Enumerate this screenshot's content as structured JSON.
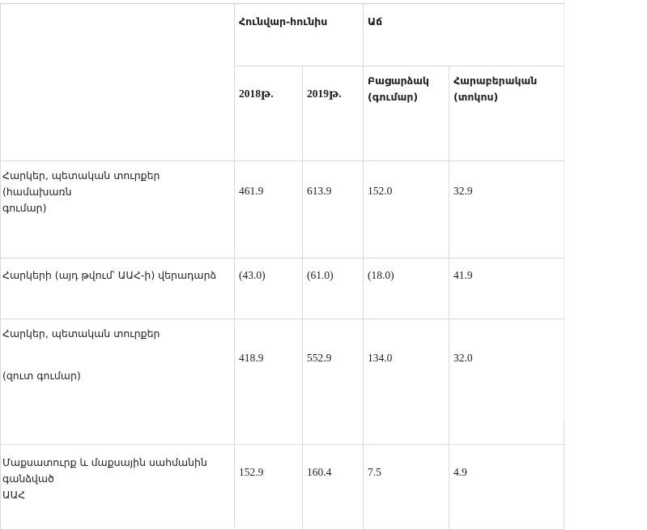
{
  "table": {
    "header_period": "Հունվար-հունիս",
    "header_change": "Աճ",
    "year_2018": "2018թ.",
    "year_2019": "2019թ.",
    "abs_line1": "Բացարձակ",
    "abs_line2": "(գումար)",
    "rel_line1": "Հարաբերական",
    "rel_line2": "(տոկոս)",
    "rows": [
      {
        "label_line1": "Հարկեր, պետական տուրքեր (համախառն",
        "label_line2": "գումար)",
        "v2018": "461.9",
        "v2019": "613.9",
        "abs": "152.0",
        "rel": "32.9"
      },
      {
        "label_line1": "Հարկերի (այդ թվում՝ ԱԱՀ-ի) վերադարձ",
        "v2018": "(43.0)",
        "v2019": "(61.0)",
        "abs": "(18.0)",
        "rel": "41.9"
      },
      {
        "label_line1": "Հարկեր, պետական տուրքեր",
        "label_line2": "(զուտ գումար)",
        "v2018": "418.9",
        "v2019": "552.9",
        "abs": "134.0",
        "rel": "32.0"
      },
      {
        "label_line1": "Մաքսատուրք և մաքսային սահմանին գանձված",
        "label_line2": "ԱԱՀ",
        "v2018": "152.9",
        "v2019": "160.4",
        "abs": "7.5",
        "rel": "4.9"
      }
    ]
  }
}
